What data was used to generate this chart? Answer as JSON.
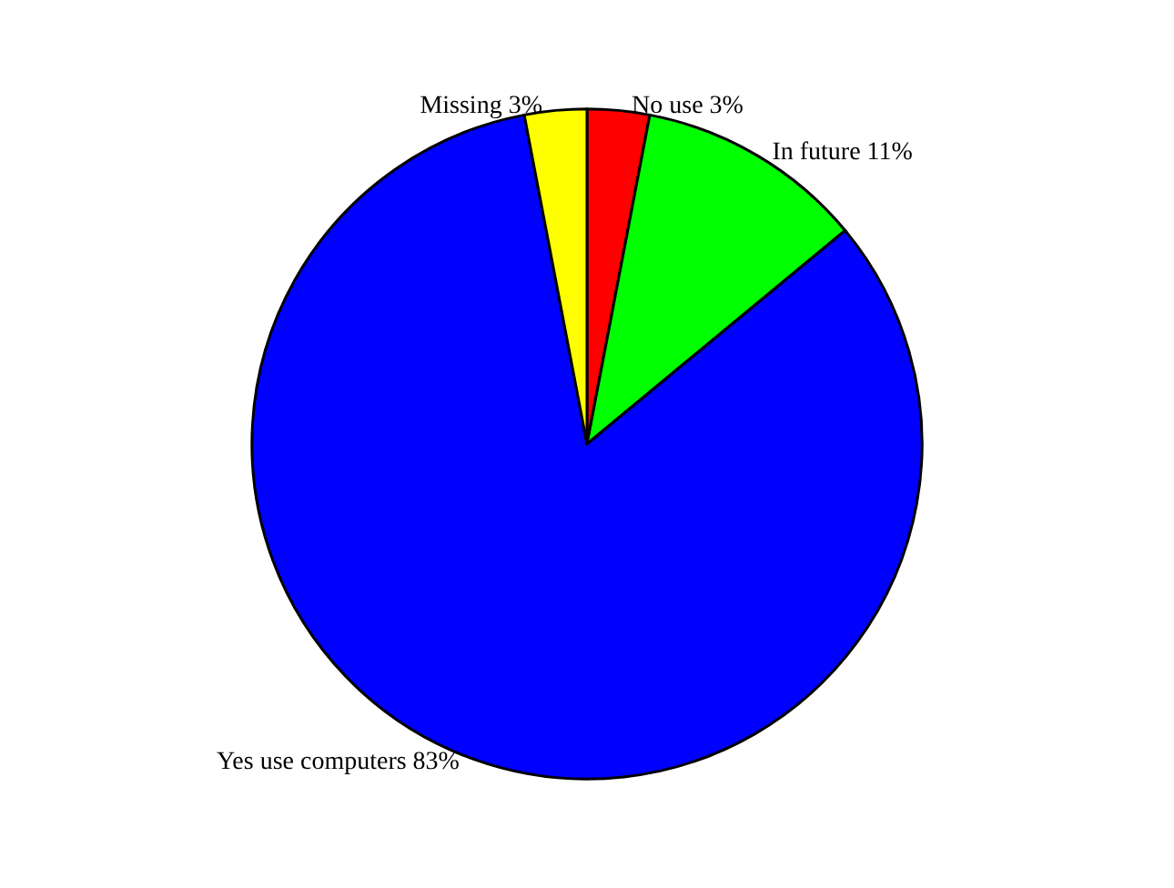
{
  "chart_data": {
    "type": "pie",
    "categories": [
      "No use",
      "In future",
      "Yes use computers",
      "Missing"
    ],
    "values": [
      3,
      11,
      83,
      3
    ],
    "value_labels": [
      "3%",
      "11%",
      "83%",
      "3%"
    ],
    "colors": [
      "#ff0000",
      "#00ff00",
      "#0000ff",
      "#ffff00"
    ],
    "legend": false
  }
}
